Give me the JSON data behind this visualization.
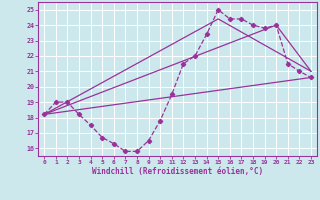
{
  "xlabel": "Windchill (Refroidissement éolien,°C)",
  "xlim": [
    -0.5,
    23.5
  ],
  "ylim": [
    15.5,
    25.5
  ],
  "yticks": [
    16,
    17,
    18,
    19,
    20,
    21,
    22,
    23,
    24,
    25
  ],
  "xticks": [
    0,
    1,
    2,
    3,
    4,
    5,
    6,
    7,
    8,
    9,
    10,
    11,
    12,
    13,
    14,
    15,
    16,
    17,
    18,
    19,
    20,
    21,
    22,
    23
  ],
  "bg_color": "#cce8ed",
  "line_color": "#993399",
  "hourly_x": [
    0,
    1,
    2,
    3,
    4,
    5,
    6,
    7,
    8,
    9,
    10,
    11,
    12,
    13,
    14,
    15,
    16,
    17,
    18,
    19,
    20,
    21,
    22,
    23
  ],
  "hourly_y": [
    18.2,
    19.0,
    19.0,
    18.2,
    17.5,
    16.7,
    16.3,
    15.8,
    15.8,
    16.5,
    17.8,
    19.5,
    21.5,
    22.0,
    23.4,
    25.0,
    24.4,
    24.4,
    24.0,
    23.8,
    24.0,
    21.5,
    21.0,
    20.6
  ],
  "line1_x": [
    0,
    23
  ],
  "line1_y": [
    18.2,
    20.6
  ],
  "line2_x": [
    0,
    15,
    23
  ],
  "line2_y": [
    18.2,
    24.4,
    21.0
  ],
  "line3_x": [
    0,
    20,
    23
  ],
  "line3_y": [
    18.2,
    24.0,
    21.0
  ]
}
